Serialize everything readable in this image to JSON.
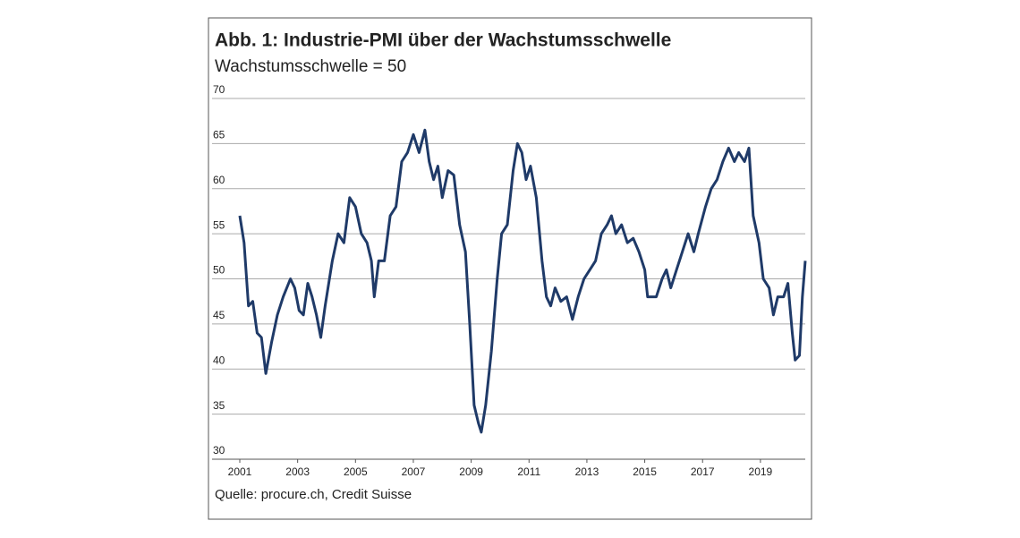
{
  "chart_data": {
    "type": "line",
    "title": "Abb. 1: Industrie-PMI über der Wachstumsschwelle",
    "subtitle": "Wachstumsschwelle = 50",
    "source": "Quelle: procure.ch, Credit Suisse",
    "color": "#1f3a68",
    "grid": true,
    "x": [
      2001.0,
      2001.15,
      2001.3,
      2001.45,
      2001.6,
      2001.75,
      2001.9,
      2002.1,
      2002.3,
      2002.5,
      2002.75,
      2002.9,
      2003.05,
      2003.2,
      2003.35,
      2003.5,
      2003.65,
      2003.8,
      2003.95,
      2004.2,
      2004.4,
      2004.6,
      2004.8,
      2005.0,
      2005.2,
      2005.4,
      2005.55,
      2005.65,
      2005.8,
      2006.0,
      2006.2,
      2006.4,
      2006.6,
      2006.8,
      2007.0,
      2007.2,
      2007.4,
      2007.55,
      2007.7,
      2007.85,
      2008.0,
      2008.2,
      2008.4,
      2008.6,
      2008.8,
      2008.95,
      2009.1,
      2009.25,
      2009.35,
      2009.5,
      2009.7,
      2009.9,
      2010.05,
      2010.25,
      2010.45,
      2010.6,
      2010.75,
      2010.9,
      2011.05,
      2011.25,
      2011.45,
      2011.6,
      2011.75,
      2011.9,
      2012.1,
      2012.3,
      2012.5,
      2012.7,
      2012.9,
      2013.1,
      2013.3,
      2013.5,
      2013.7,
      2013.85,
      2014.0,
      2014.2,
      2014.4,
      2014.6,
      2014.8,
      2015.0,
      2015.1,
      2015.4,
      2015.6,
      2015.75,
      2015.9,
      2016.1,
      2016.3,
      2016.5,
      2016.7,
      2016.85,
      2017.1,
      2017.3,
      2017.5,
      2017.7,
      2017.9,
      2018.1,
      2018.25,
      2018.45,
      2018.6,
      2018.75,
      2018.95,
      2019.1,
      2019.3,
      2019.45,
      2019.6,
      2019.8,
      2019.95,
      2020.1,
      2020.2,
      2020.35,
      2020.45,
      2020.55
    ],
    "values": [
      57,
      54,
      47,
      47.5,
      44,
      43.5,
      39.5,
      43,
      46,
      48,
      50,
      49,
      46.5,
      46,
      49.5,
      48,
      46,
      43.5,
      47,
      52,
      55,
      54,
      59,
      58,
      55,
      54,
      52,
      48,
      52,
      52,
      57,
      58,
      63,
      64,
      66,
      64,
      66.5,
      63,
      61,
      62.5,
      59,
      62,
      61.5,
      56,
      53,
      45,
      36,
      34,
      33,
      36,
      42,
      50,
      55,
      56,
      62,
      65,
      64,
      61,
      62.5,
      59,
      52,
      48,
      47,
      49,
      47.5,
      48,
      45.5,
      48,
      50,
      51,
      52,
      55,
      56,
      57,
      55,
      56,
      54,
      54.5,
      53,
      51,
      48,
      48,
      50,
      51,
      49,
      51,
      53,
      55,
      53,
      55,
      58,
      60,
      61,
      63,
      64.5,
      63,
      64,
      63,
      64.5,
      57,
      54,
      50,
      49,
      46,
      48,
      48,
      49.5,
      44,
      41,
      41.5,
      48,
      52
    ],
    "xlim": [
      2001,
      2020.55
    ],
    "xticks": [
      2001,
      2003,
      2005,
      2007,
      2009,
      2011,
      2013,
      2015,
      2017,
      2019
    ],
    "ylim": [
      30,
      70
    ],
    "yticks": [
      30,
      35,
      40,
      45,
      50,
      55,
      60,
      65,
      70
    ]
  }
}
